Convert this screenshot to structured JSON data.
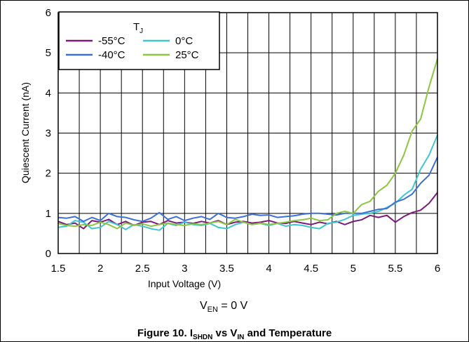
{
  "chart_data": {
    "type": "line",
    "xlabel": "Input Voltage (V)",
    "ylabel": "Quiescent Current (nA)",
    "xlim": [
      1.5,
      6
    ],
    "ylim": [
      0,
      6
    ],
    "x_ticks": [
      "1.5",
      "2",
      "2.5",
      "3",
      "3.5",
      "4",
      "4.5",
      "5",
      "5.5",
      "6"
    ],
    "y_ticks": [
      "0",
      "1",
      "2",
      "3",
      "4",
      "5",
      "6"
    ],
    "grid": true,
    "annotation": "V_EN = 0 V",
    "annotation_parts": {
      "main": "V",
      "sub": "EN",
      "rest": " = 0 V"
    },
    "legend": {
      "title": "T",
      "title_sub": "J",
      "placement": "top-left",
      "entries": [
        "-55°C",
        "0°C",
        "-40°C",
        "25°C"
      ]
    },
    "series": [
      {
        "name": "-55°C",
        "color": "#7b1a7b",
        "x": [
          1.5,
          1.6,
          1.7,
          1.8,
          1.9,
          2.0,
          2.1,
          2.2,
          2.3,
          2.4,
          2.5,
          2.6,
          2.7,
          2.8,
          2.9,
          3.0,
          3.1,
          3.2,
          3.3,
          3.4,
          3.5,
          3.6,
          3.7,
          3.8,
          3.9,
          4.0,
          4.1,
          4.2,
          4.3,
          4.4,
          4.5,
          4.6,
          4.7,
          4.8,
          4.9,
          5.0,
          5.1,
          5.2,
          5.3,
          5.4,
          5.5,
          5.6,
          5.7,
          5.8,
          5.9,
          6.0
        ],
        "y": [
          0.8,
          0.72,
          0.76,
          0.62,
          0.82,
          0.78,
          0.85,
          0.72,
          0.8,
          0.7,
          0.78,
          0.8,
          0.72,
          0.82,
          0.76,
          0.78,
          0.75,
          0.8,
          0.76,
          0.82,
          0.72,
          0.78,
          0.8,
          0.76,
          0.78,
          0.82,
          0.76,
          0.75,
          0.8,
          0.76,
          0.72,
          0.78,
          0.74,
          0.8,
          0.72,
          0.8,
          0.84,
          0.95,
          0.9,
          0.95,
          0.78,
          0.92,
          1.02,
          1.08,
          1.25,
          1.52
        ]
      },
      {
        "name": "0°C",
        "color": "#3ec6cf",
        "x": [
          1.5,
          1.6,
          1.7,
          1.8,
          1.9,
          2.0,
          2.1,
          2.2,
          2.3,
          2.4,
          2.5,
          2.6,
          2.7,
          2.8,
          2.9,
          3.0,
          3.1,
          3.2,
          3.3,
          3.4,
          3.5,
          3.6,
          3.7,
          3.8,
          3.9,
          4.0,
          4.1,
          4.2,
          4.3,
          4.4,
          4.5,
          4.6,
          4.7,
          4.8,
          4.9,
          5.0,
          5.1,
          5.2,
          5.3,
          5.4,
          5.5,
          5.6,
          5.7,
          5.8,
          5.9,
          6.0
        ],
        "y": [
          0.65,
          0.68,
          0.82,
          0.78,
          0.62,
          0.65,
          0.8,
          0.72,
          0.6,
          0.72,
          0.68,
          0.62,
          0.58,
          0.75,
          0.7,
          0.78,
          0.72,
          0.7,
          0.75,
          0.65,
          0.62,
          0.72,
          0.78,
          0.72,
          0.75,
          0.7,
          0.75,
          0.68,
          0.72,
          0.7,
          0.65,
          0.62,
          0.75,
          0.78,
          0.85,
          0.95,
          0.98,
          1.0,
          1.05,
          1.15,
          1.25,
          1.45,
          1.6,
          2.1,
          2.45,
          2.95
        ]
      },
      {
        "name": "-40°C",
        "color": "#3d6fd6",
        "x": [
          1.5,
          1.6,
          1.7,
          1.8,
          1.9,
          2.0,
          2.1,
          2.2,
          2.3,
          2.4,
          2.5,
          2.6,
          2.7,
          2.8,
          2.9,
          3.0,
          3.1,
          3.2,
          3.3,
          3.4,
          3.5,
          3.6,
          3.7,
          3.8,
          3.9,
          4.0,
          4.1,
          4.2,
          4.3,
          4.4,
          4.5,
          4.6,
          4.7,
          4.8,
          4.9,
          5.0,
          5.1,
          5.2,
          5.3,
          5.4,
          5.5,
          5.6,
          5.7,
          5.8,
          5.9,
          6.0
        ],
        "y": [
          0.9,
          0.88,
          0.92,
          0.8,
          0.9,
          0.82,
          1.0,
          0.92,
          0.9,
          0.84,
          0.8,
          0.88,
          1.02,
          0.85,
          0.92,
          0.82,
          0.88,
          0.92,
          0.85,
          1.0,
          0.9,
          0.88,
          0.92,
          0.98,
          0.95,
          0.96,
          0.9,
          0.92,
          0.94,
          0.98,
          1.0,
          1.0,
          0.98,
          0.96,
          1.0,
          1.0,
          1.0,
          1.05,
          1.1,
          1.12,
          1.28,
          1.35,
          1.48,
          1.75,
          1.95,
          2.4
        ]
      },
      {
        "name": "25°C",
        "color": "#8cc63f",
        "x": [
          1.5,
          1.6,
          1.7,
          1.8,
          1.9,
          2.0,
          2.1,
          2.2,
          2.3,
          2.4,
          2.5,
          2.6,
          2.7,
          2.8,
          2.9,
          3.0,
          3.1,
          3.2,
          3.3,
          3.4,
          3.5,
          3.6,
          3.7,
          3.8,
          3.9,
          4.0,
          4.1,
          4.2,
          4.3,
          4.4,
          4.5,
          4.6,
          4.7,
          4.8,
          4.9,
          5.0,
          5.1,
          5.2,
          5.3,
          5.4,
          5.5,
          5.6,
          5.7,
          5.8,
          5.9,
          6.0
        ],
        "y": [
          0.75,
          0.7,
          0.68,
          0.72,
          0.7,
          0.78,
          0.72,
          0.62,
          0.76,
          0.7,
          0.74,
          0.68,
          0.72,
          0.76,
          0.72,
          0.7,
          0.74,
          0.72,
          0.76,
          0.8,
          0.72,
          0.85,
          0.78,
          0.72,
          0.76,
          0.72,
          0.75,
          0.78,
          0.82,
          0.84,
          0.88,
          0.82,
          0.84,
          1.0,
          1.05,
          1.0,
          1.22,
          1.3,
          1.55,
          1.7,
          2.0,
          2.45,
          3.05,
          3.35,
          4.15,
          4.85
        ]
      }
    ]
  },
  "caption": {
    "prefix": "Figure 10. I",
    "sub1": "SHDN",
    "middle": " vs V",
    "sub2": "IN",
    "suffix": " and Temperature"
  }
}
